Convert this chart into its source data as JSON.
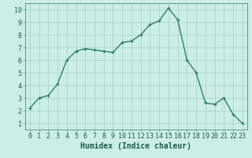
{
  "x": [
    0,
    1,
    2,
    3,
    4,
    5,
    6,
    7,
    8,
    9,
    10,
    11,
    12,
    13,
    14,
    15,
    16,
    17,
    18,
    19,
    20,
    21,
    22,
    23
  ],
  "y": [
    2.2,
    3.0,
    3.2,
    4.1,
    6.0,
    6.7,
    6.9,
    6.8,
    6.7,
    6.6,
    7.4,
    7.5,
    8.0,
    8.8,
    9.1,
    10.1,
    9.2,
    6.0,
    5.0,
    2.6,
    2.5,
    3.0,
    1.7,
    1.0
  ],
  "line_color": "#2d7d6e",
  "marker": "+",
  "markersize": 3.5,
  "linewidth": 1.0,
  "bg_color": "#cceee8",
  "grid_color": "#aad4cc",
  "xlabel": "Humidex (Indice chaleur)",
  "xlabel_fontsize": 7,
  "tick_fontsize": 6,
  "xlim": [
    -0.5,
    23.5
  ],
  "ylim": [
    0.5,
    10.5
  ],
  "yticks": [
    1,
    2,
    3,
    4,
    5,
    6,
    7,
    8,
    9,
    10
  ],
  "xticks": [
    0,
    1,
    2,
    3,
    4,
    5,
    6,
    7,
    8,
    9,
    10,
    11,
    12,
    13,
    14,
    15,
    16,
    17,
    18,
    19,
    20,
    21,
    22,
    23
  ]
}
